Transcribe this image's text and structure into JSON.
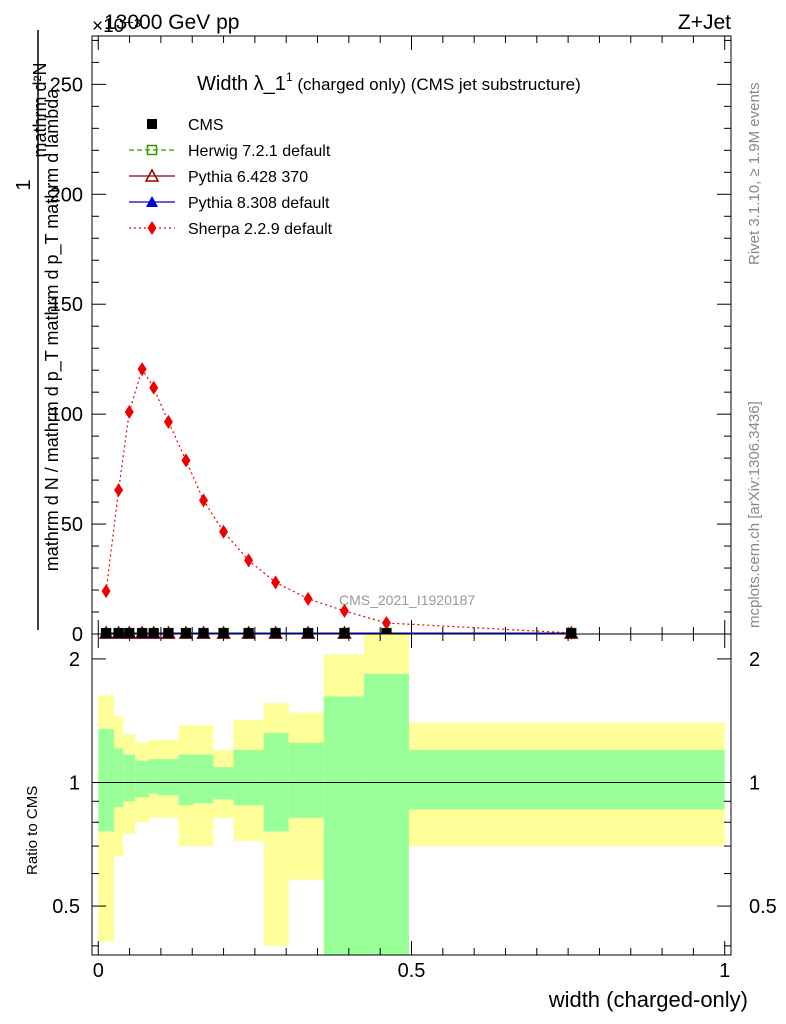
{
  "header": {
    "left": "13000 GeV pp",
    "right": "Z+Jet",
    "exponent": "×10⁻³"
  },
  "side_labels": {
    "rivet": "Rivet 3.1.10, ≥ 1.9M events",
    "mcplots": "mcplots.cern.ch [arXiv:1306.3436]"
  },
  "chart_data": [
    {
      "type": "line",
      "title": "Width λ_1¹ (charged only) (CMS jet substructure)",
      "ylabel": "1 / mathrm d N / mathrm d p_T mathrm d p_T mathrm d lambda mathrm d²N",
      "ylabel_parts": {
        "one": "1",
        "top_frac": "mathrm d²N",
        "main": "mathrm d N / mathrm d p_T mathrm d p_T mathrm d lambda"
      },
      "xlim": [
        -0.01,
        1.01
      ],
      "ylim": [
        0,
        272
      ],
      "y_scale_note": "×10⁻³",
      "y_ticks": [
        0,
        50,
        100,
        150,
        200,
        250
      ],
      "analysis_tag": "CMS_2021_I1920187",
      "legend_position": "top-left",
      "x": [
        0.0125,
        0.0325,
        0.0495,
        0.07,
        0.0885,
        0.112,
        0.14,
        0.168,
        0.2,
        0.24,
        0.283,
        0.335,
        0.393,
        0.46,
        0.755
      ],
      "series": [
        {
          "name": "CMS",
          "color": "#000000",
          "marker": "filled-square",
          "line": "none",
          "values": [
            0.4,
            0.4,
            0.4,
            0.4,
            0.4,
            0.4,
            0.4,
            0.4,
            0.4,
            0.4,
            0.4,
            0.4,
            0.4,
            0.4,
            0.4
          ]
        },
        {
          "name": "Herwig 7.2.1 default",
          "color": "#339900",
          "marker": "open-square",
          "line": "dashed",
          "values": [
            0.4,
            0.4,
            0.4,
            0.4,
            0.4,
            0.4,
            0.4,
            0.4,
            0.4,
            0.4,
            0.4,
            0.4,
            0.4,
            0.4,
            0.4
          ]
        },
        {
          "name": "Pythia 6.428 370",
          "color": "#990000",
          "marker": "open-triangle",
          "line": "solid",
          "values": [
            0.4,
            0.4,
            0.4,
            0.4,
            0.4,
            0.4,
            0.4,
            0.4,
            0.4,
            0.4,
            0.4,
            0.4,
            0.4,
            0.4,
            0.4
          ]
        },
        {
          "name": "Pythia 8.308 default",
          "color": "#0000cc",
          "marker": "filled-triangle",
          "line": "solid",
          "values": [
            0.4,
            0.4,
            0.4,
            0.4,
            0.4,
            0.4,
            0.4,
            0.4,
            0.4,
            0.4,
            0.4,
            0.4,
            0.4,
            0.4,
            0.4
          ]
        },
        {
          "name": "Sherpa 2.2.9 default",
          "color": "#ee0000",
          "marker": "filled-diamond",
          "line": "dotted",
          "values": [
            19.5,
            65.5,
            101,
            120.5,
            112,
            96.5,
            79,
            60.8,
            46.5,
            33.5,
            23.5,
            16,
            10.5,
            5,
            0.5
          ]
        }
      ]
    },
    {
      "type": "area",
      "ylabel": "Ratio to CMS",
      "xlabel": "width (charged-only)",
      "xlim": [
        -0.01,
        1.01
      ],
      "ylim": [
        0.38,
        2.3
      ],
      "y_scale": "log",
      "y_ticks": [
        0.5,
        1,
        2
      ],
      "x_ticks": [
        0,
        0.5,
        1
      ],
      "x_tick_labels": [
        "0",
        "0.5",
        "1"
      ],
      "reference_line": 1,
      "bands_colors": {
        "inner": "#99ff99",
        "outer": "#ffff99"
      },
      "bins": [
        {
          "lo": 0.0,
          "hi": 0.025,
          "inner": [
            0.76,
            1.35
          ],
          "outer": [
            0.41,
            1.63
          ]
        },
        {
          "lo": 0.025,
          "hi": 0.04,
          "inner": [
            0.87,
            1.21
          ],
          "outer": [
            0.66,
            1.45
          ]
        },
        {
          "lo": 0.04,
          "hi": 0.059,
          "inner": [
            0.9,
            1.17
          ],
          "outer": [
            0.75,
            1.31
          ]
        },
        {
          "lo": 0.059,
          "hi": 0.081,
          "inner": [
            0.92,
            1.13
          ],
          "outer": [
            0.8,
            1.25
          ]
        },
        {
          "lo": 0.081,
          "hi": 0.096,
          "inner": [
            0.94,
            1.14
          ],
          "outer": [
            0.82,
            1.27
          ]
        },
        {
          "lo": 0.096,
          "hi": 0.128,
          "inner": [
            0.93,
            1.14
          ],
          "outer": [
            0.82,
            1.27
          ]
        },
        {
          "lo": 0.128,
          "hi": 0.152,
          "inner": [
            0.88,
            1.17
          ],
          "outer": [
            0.7,
            1.38
          ]
        },
        {
          "lo": 0.152,
          "hi": 0.184,
          "inner": [
            0.89,
            1.17
          ],
          "outer": [
            0.7,
            1.38
          ]
        },
        {
          "lo": 0.184,
          "hi": 0.216,
          "inner": [
            0.91,
            1.09
          ],
          "outer": [
            0.82,
            1.2
          ]
        },
        {
          "lo": 0.216,
          "hi": 0.264,
          "inner": [
            0.88,
            1.2
          ],
          "outer": [
            0.72,
            1.42
          ]
        },
        {
          "lo": 0.264,
          "hi": 0.304,
          "inner": [
            0.76,
            1.32
          ],
          "outer": [
            0.4,
            1.56
          ]
        },
        {
          "lo": 0.304,
          "hi": 0.36,
          "inner": [
            0.82,
            1.25
          ],
          "outer": [
            0.58,
            1.48
          ]
        },
        {
          "lo": 0.36,
          "hi": 0.424,
          "inner": [
            0.37,
            1.62
          ],
          "outer": [
            0.37,
            2.05
          ]
        },
        {
          "lo": 0.424,
          "hi": 0.496,
          "inner": [
            0.37,
            1.84
          ],
          "outer": [
            0.37,
            2.4
          ]
        },
        {
          "lo": 0.496,
          "hi": 1.0,
          "inner": [
            0.86,
            1.2
          ],
          "outer": [
            0.7,
            1.4
          ]
        }
      ]
    }
  ]
}
